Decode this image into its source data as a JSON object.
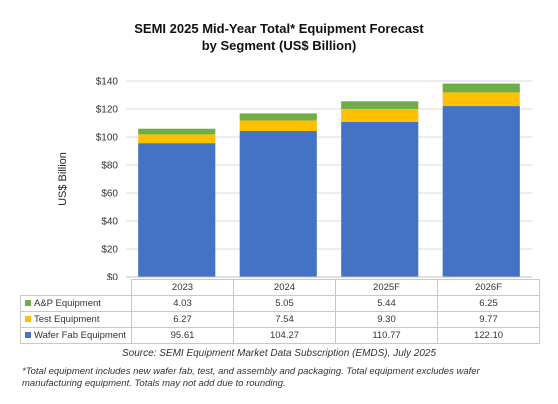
{
  "chart_data": {
    "type": "bar",
    "stacked": true,
    "title": [
      "SEMI 2025 Mid-Year Total* Equipment Forecast",
      "by Segment (US$ Billion)"
    ],
    "ylabel": "US$ Billion",
    "ylim": [
      0,
      140
    ],
    "yticks": [
      "$0",
      "$20",
      "$40",
      "$60",
      "$80",
      "$100",
      "$120",
      "$140"
    ],
    "ytick_values": [
      0,
      20,
      40,
      60,
      80,
      100,
      120,
      140
    ],
    "grid": true,
    "categories": [
      "2023",
      "2024",
      "2025F",
      "2026F"
    ],
    "series": [
      {
        "name": "Wafer Fab Equipment",
        "color": "#4472c4",
        "values": [
          95.61,
          104.27,
          110.77,
          122.1
        ],
        "value_labels": [
          "95.61",
          "104.27",
          "110.77",
          "122.10"
        ]
      },
      {
        "name": "Test Equipment",
        "color": "#ffc000",
        "values": [
          6.27,
          7.54,
          9.3,
          9.77
        ],
        "value_labels": [
          "6.27",
          "7.54",
          "9.30",
          "9.77"
        ]
      },
      {
        "name": "A&P Equipment",
        "color": "#70ad47",
        "values": [
          4.03,
          5.05,
          5.44,
          6.25
        ],
        "value_labels": [
          "4.03",
          "5.05",
          "5.44",
          "6.25"
        ]
      }
    ],
    "legend": "data-table-below"
  },
  "source": "Source: SEMI Equipment Market Data Subscription (EMDS), July 2025",
  "footnote": "*Total equipment includes new wafer fab, test, and assembly and packaging. Total equipment excludes wafer manufacturing equipment. Totals may not add due to rounding."
}
